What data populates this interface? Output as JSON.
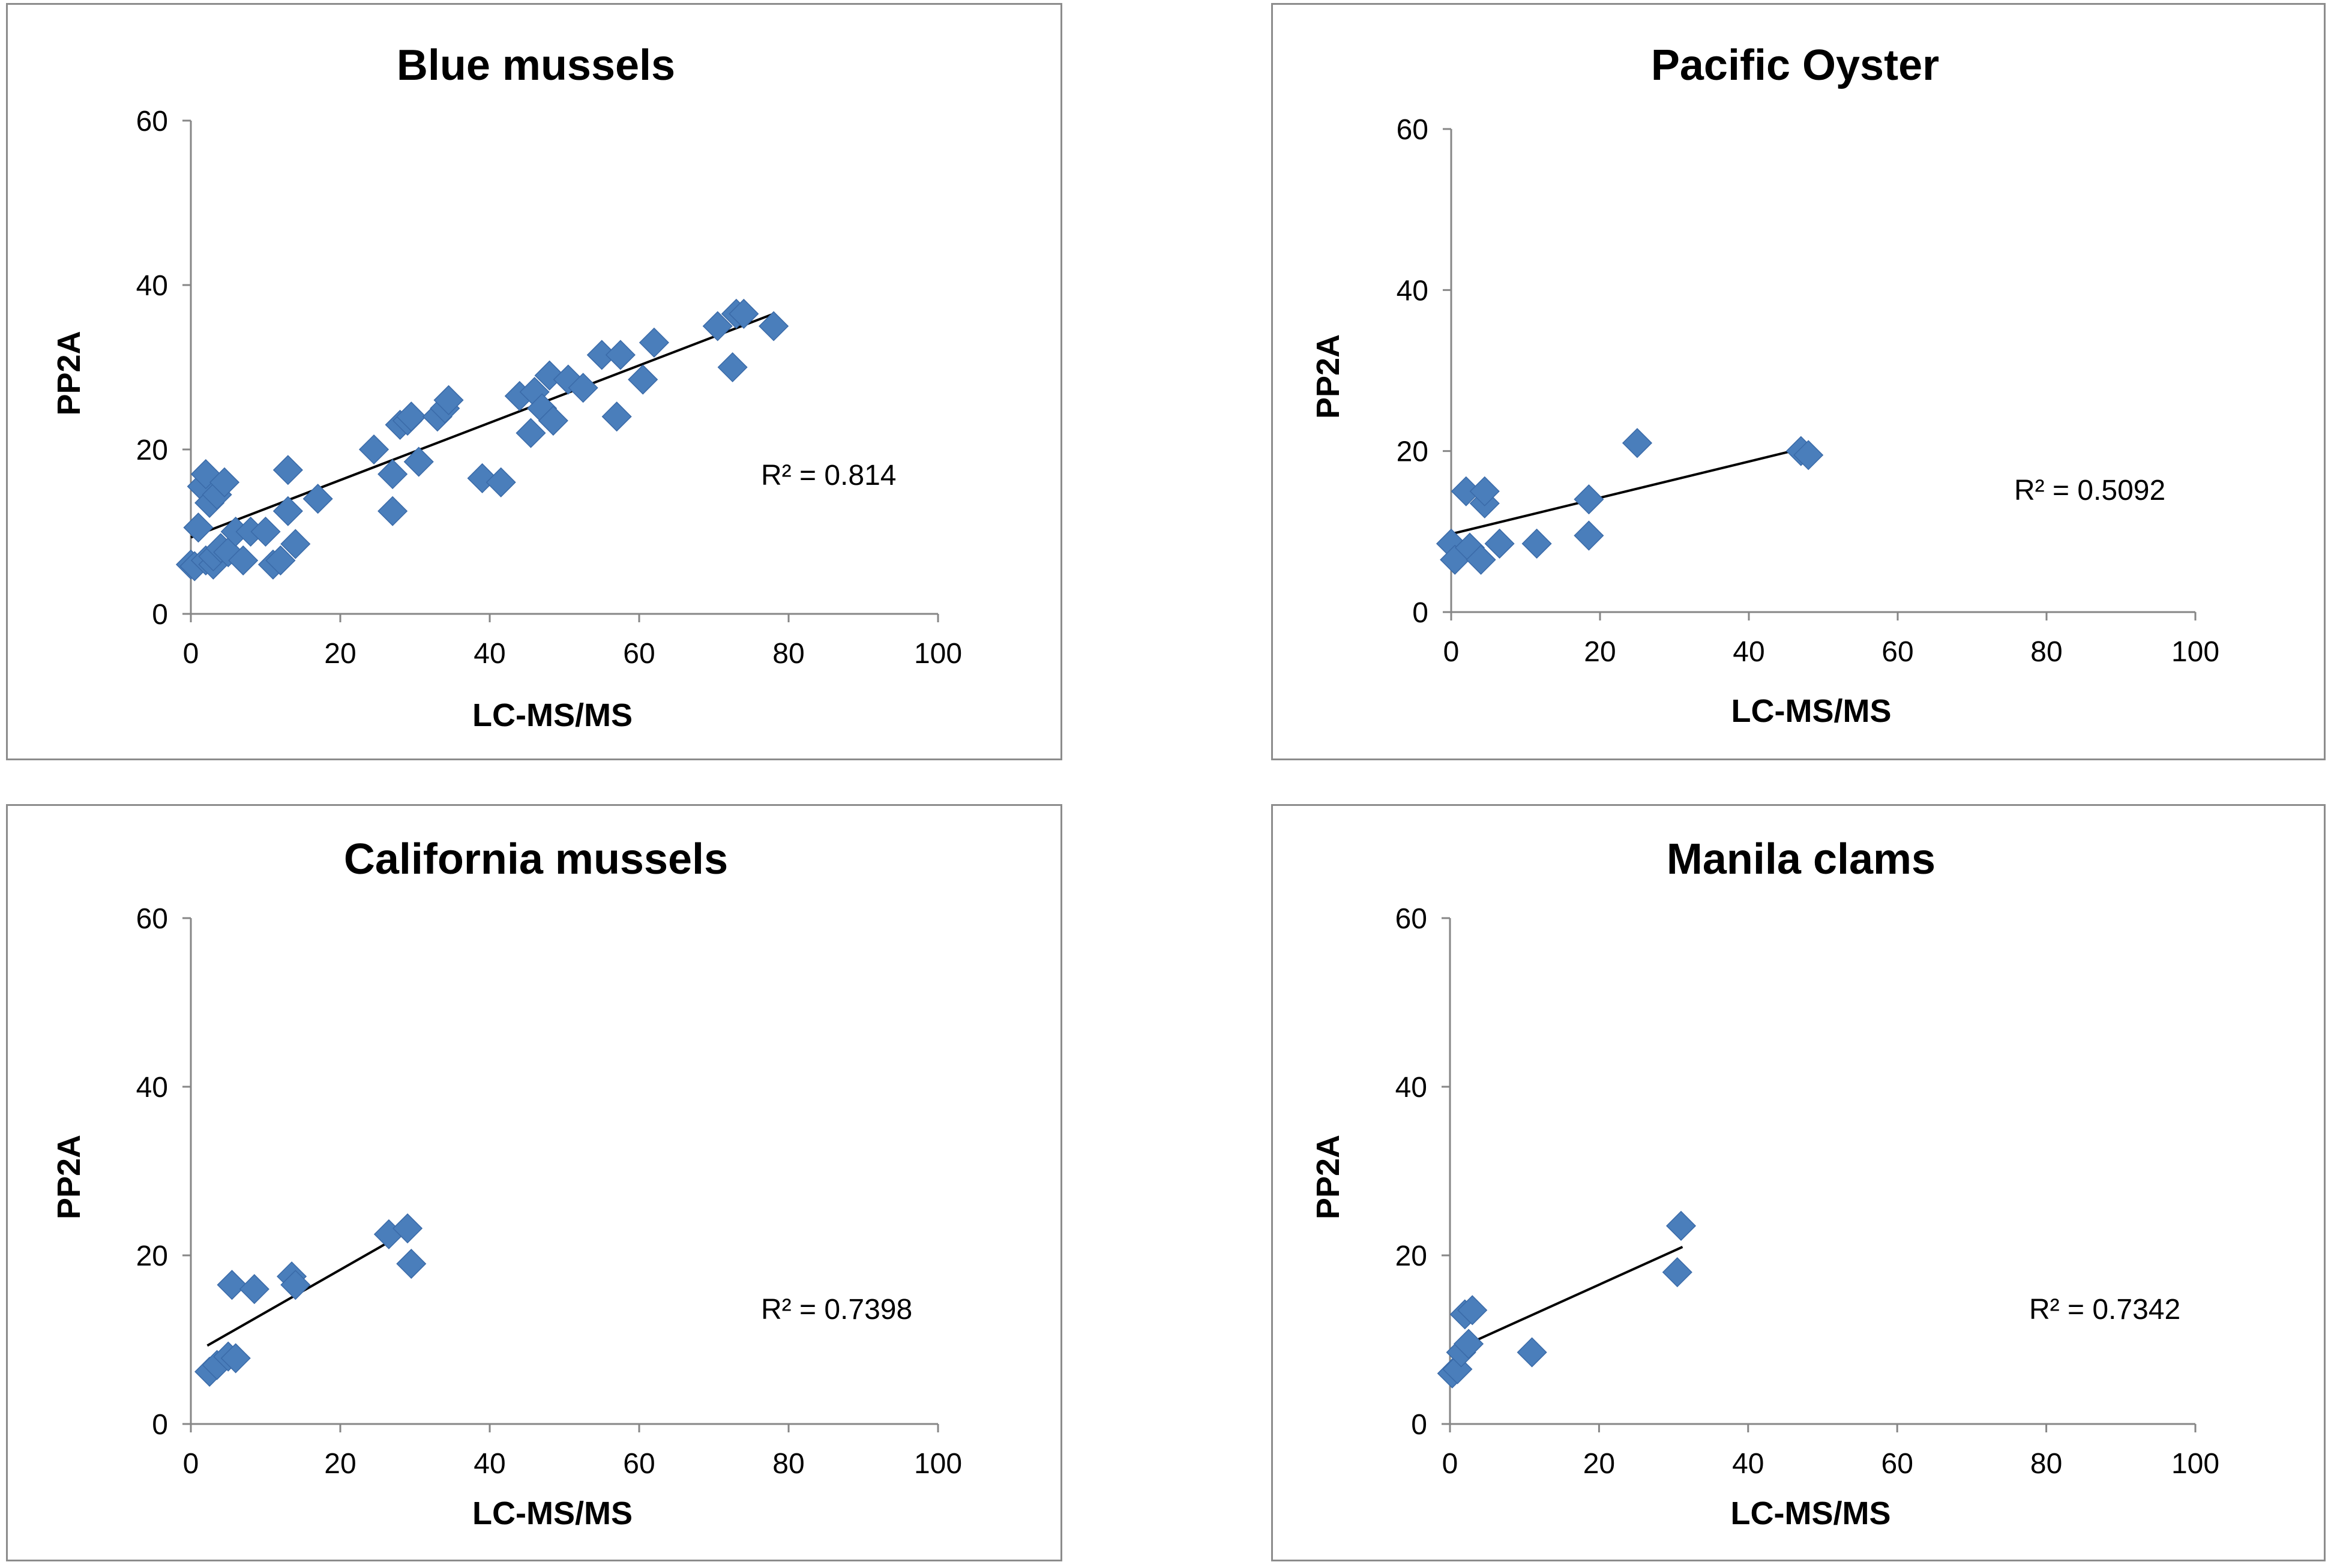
{
  "chart_data": [
    {
      "type": "scatter",
      "title": "Blue mussels",
      "xlabel": "LC-MS/MS",
      "ylabel": "PP2A",
      "xlim": [
        0,
        100
      ],
      "ylim": [
        0,
        60
      ],
      "xticks": [
        "0",
        "20",
        "40",
        "60",
        "80",
        "100"
      ],
      "yticks": [
        "0",
        "20",
        "40",
        "60"
      ],
      "r2_label": "R² = 0.814",
      "trendline": {
        "x": [
          0,
          78
        ],
        "y": [
          9.3,
          36.5
        ]
      },
      "points": [
        [
          0,
          6
        ],
        [
          0.5,
          5.8
        ],
        [
          1,
          10.5
        ],
        [
          1.5,
          15.5
        ],
        [
          2,
          17
        ],
        [
          2,
          6.5
        ],
        [
          2.5,
          13.5
        ],
        [
          3,
          6
        ],
        [
          3,
          7
        ],
        [
          3.5,
          14.5
        ],
        [
          4,
          8
        ],
        [
          4.5,
          16
        ],
        [
          5,
          7.5
        ],
        [
          6,
          10
        ],
        [
          7,
          6.5
        ],
        [
          8,
          10
        ],
        [
          10,
          10
        ],
        [
          11,
          6
        ],
        [
          12,
          6.5
        ],
        [
          13,
          12.5
        ],
        [
          13,
          17.5
        ],
        [
          14,
          8.5
        ],
        [
          17,
          14
        ],
        [
          24.5,
          20
        ],
        [
          27,
          17
        ],
        [
          27,
          12.5
        ],
        [
          28,
          23
        ],
        [
          29,
          23.5
        ],
        [
          29.5,
          24
        ],
        [
          30.5,
          18.5
        ],
        [
          33,
          24
        ],
        [
          34,
          25
        ],
        [
          34.5,
          26
        ],
        [
          39,
          16.5
        ],
        [
          41.5,
          16
        ],
        [
          44,
          26.5
        ],
        [
          45.5,
          22
        ],
        [
          46,
          27
        ],
        [
          47,
          25
        ],
        [
          48,
          29
        ],
        [
          48.5,
          23.5
        ],
        [
          50.5,
          28.5
        ],
        [
          52.5,
          27.5
        ],
        [
          55,
          31.5
        ],
        [
          57,
          24
        ],
        [
          57.5,
          31.5
        ],
        [
          60.5,
          28.5
        ],
        [
          62,
          33
        ],
        [
          70.5,
          35
        ],
        [
          72.5,
          30
        ],
        [
          73,
          36.5
        ],
        [
          74,
          36.5
        ],
        [
          78,
          35
        ]
      ]
    },
    {
      "type": "scatter",
      "title": "Pacific Oyster",
      "xlabel": "LC-MS/MS",
      "ylabel": "PP2A",
      "xlim": [
        0,
        100
      ],
      "ylim": [
        0,
        60
      ],
      "xticks": [
        "0",
        "20",
        "40",
        "60",
        "80",
        "100"
      ],
      "yticks": [
        "0",
        "20",
        "40",
        "60"
      ],
      "r2_label": "R² = 0.5092",
      "trendline": {
        "x": [
          0,
          48
        ],
        "y": [
          9.7,
          20.5
        ]
      },
      "points": [
        [
          0,
          8.5
        ],
        [
          0.5,
          6.5
        ],
        [
          2,
          15
        ],
        [
          2.5,
          8
        ],
        [
          4,
          6.5
        ],
        [
          4.5,
          13.5
        ],
        [
          4.5,
          15
        ],
        [
          6.5,
          8.5
        ],
        [
          11.5,
          8.5
        ],
        [
          18.5,
          14
        ],
        [
          18.5,
          9.5
        ],
        [
          25,
          21
        ],
        [
          47,
          20
        ],
        [
          48,
          19.5
        ]
      ]
    },
    {
      "type": "scatter",
      "title": "California mussels",
      "xlabel": "LC-MS/MS",
      "ylabel": "PP2A",
      "xlim": [
        0,
        100
      ],
      "ylim": [
        0,
        60
      ],
      "xticks": [
        "0",
        "20",
        "40",
        "60",
        "80",
        "100"
      ],
      "yticks": [
        "0",
        "20",
        "40",
        "60"
      ],
      "r2_label": "R² = 0.7398",
      "trendline": {
        "x": [
          2.2,
          29.3
        ],
        "y": [
          9.3,
          23
        ]
      },
      "points": [
        [
          2.5,
          6.2
        ],
        [
          3.5,
          7
        ],
        [
          5,
          8
        ],
        [
          5.5,
          16.5
        ],
        [
          6,
          7.8
        ],
        [
          8.5,
          16
        ],
        [
          13.5,
          17.5
        ],
        [
          14,
          16.5
        ],
        [
          26.5,
          22.5
        ],
        [
          29,
          23.2
        ],
        [
          29.5,
          19
        ]
      ]
    },
    {
      "type": "scatter",
      "title": "Manila clams",
      "xlabel": "LC-MS/MS",
      "ylabel": "PP2A",
      "xlim": [
        0,
        100
      ],
      "ylim": [
        0,
        60
      ],
      "xticks": [
        "0",
        "20",
        "40",
        "60",
        "80",
        "100"
      ],
      "yticks": [
        "0",
        "20",
        "40",
        "60"
      ],
      "r2_label": "R² = 0.7342",
      "trendline": {
        "x": [
          0.2,
          31.2
        ],
        "y": [
          8.6,
          21
        ]
      },
      "points": [
        [
          0.3,
          6
        ],
        [
          1,
          6.5
        ],
        [
          1.5,
          8.5
        ],
        [
          2,
          13
        ],
        [
          2.5,
          9.5
        ],
        [
          3,
          13.5
        ],
        [
          11,
          8.5
        ],
        [
          30.5,
          18
        ],
        [
          31,
          23.5
        ]
      ]
    }
  ]
}
